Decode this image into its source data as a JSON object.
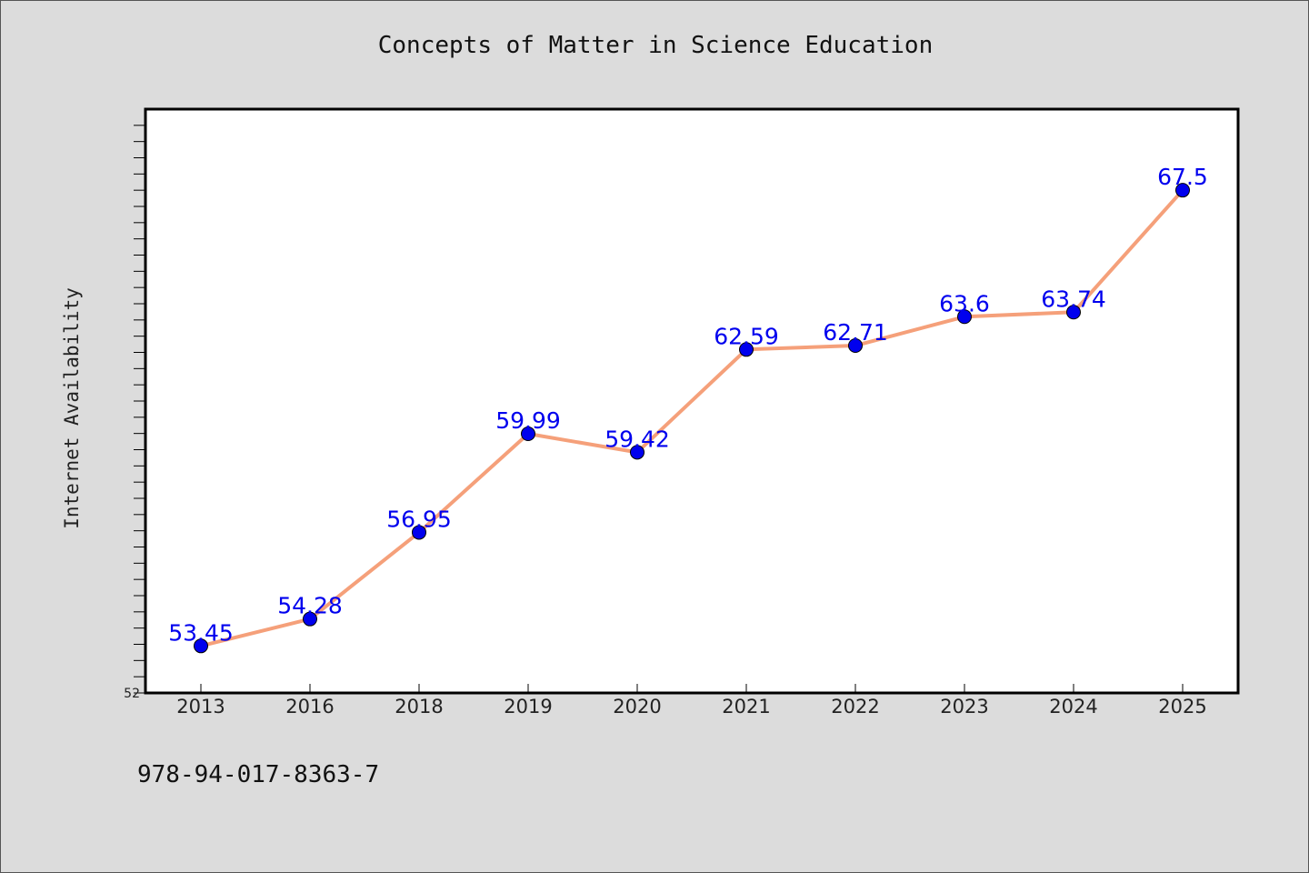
{
  "chart_data": {
    "type": "line",
    "title": "Concepts of Matter in Science Education",
    "ylabel": "Internet Availability",
    "xlabel": "",
    "x": [
      "2013",
      "2016",
      "2018",
      "2019",
      "2020",
      "2021",
      "2022",
      "2023",
      "2024",
      "2025"
    ],
    "series": [
      {
        "values": [
          53.45,
          54.28,
          56.95,
          59.99,
          59.42,
          62.59,
          62.71,
          63.6,
          63.74,
          67.5
        ]
      }
    ],
    "data_labels": [
      "53.45",
      "54.28",
      "56.95",
      "59.99",
      "59.42",
      "62.59",
      "62.71",
      "63.6",
      "63.74",
      "67.5"
    ],
    "ylim": [
      52,
      70
    ],
    "y_tick_labels": [
      "52"
    ],
    "grid": false,
    "line_color": "#f5a07a",
    "marker_color": "#0000ee",
    "label_color": "#0000ee",
    "plot_background": "#ffffff",
    "page_background": "#dcdcdc"
  },
  "footer": {
    "code": "978-94-017-8363-7"
  }
}
